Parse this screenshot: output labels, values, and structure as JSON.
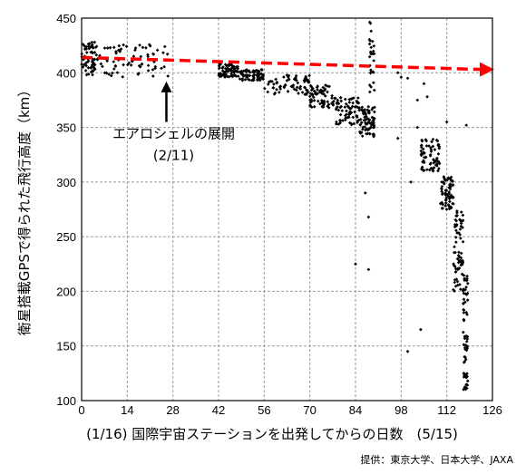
{
  "chart_data": {
    "type": "scatter",
    "title": "",
    "ylabel": "衛星搭載GPSで得られた飛行高度（km）",
    "xlabel": "(1/16) 国際宇宙ステーションを出発してからの日数　(5/15)",
    "xlim": [
      0,
      126
    ],
    "ylim": [
      100,
      450
    ],
    "xticks": [
      0,
      14,
      28,
      42,
      56,
      70,
      84,
      98,
      112,
      126
    ],
    "yticks": [
      100,
      150,
      200,
      250,
      300,
      350,
      400,
      450
    ],
    "grid": true,
    "annotation": {
      "text": "エアロシェルの展開",
      "date": "(2/11)",
      "x": 26,
      "y_from": 355,
      "y_to": 392
    },
    "trend_line": {
      "x": [
        0,
        126
      ],
      "y": [
        414,
        403
      ],
      "color": "#ff0000",
      "style": "dashed"
    },
    "series_color": "#000000",
    "clusters": [
      {
        "x": [
          0,
          5
        ],
        "y_min": 398,
        "y_max": 428
      },
      {
        "x": [
          5,
          27
        ],
        "y_min": 396,
        "y_max": 426
      },
      {
        "x": [
          42,
          48
        ],
        "y_min": 396,
        "y_max": 408
      },
      {
        "x": [
          48,
          56
        ],
        "y_min": 393,
        "y_max": 403
      },
      {
        "x": [
          56,
          70
        ],
        "y_min": 380,
        "y_max": 398
      },
      {
        "x": [
          70,
          78
        ],
        "y_min": 368,
        "y_max": 390
      },
      {
        "x": [
          78,
          85
        ],
        "y_min": 352,
        "y_max": 378
      },
      {
        "x": [
          85,
          90
        ],
        "y_min": 342,
        "y_max": 370
      },
      {
        "x": [
          104,
          110
        ],
        "y_min": 310,
        "y_max": 340
      },
      {
        "x": [
          110,
          114
        ],
        "y_min": 275,
        "y_max": 305
      },
      {
        "x": [
          114,
          117
        ],
        "y_min": 200,
        "y_max": 280
      },
      {
        "x": [
          117,
          118.5
        ],
        "y_min": 110,
        "y_max": 215
      }
    ],
    "outliers": [
      [
        97,
        400
      ],
      [
        98,
        396
      ],
      [
        100,
        395
      ],
      [
        105,
        390
      ],
      [
        106,
        378
      ],
      [
        103,
        375
      ],
      [
        112,
        355
      ],
      [
        118,
        352
      ],
      [
        101,
        300
      ],
      [
        84,
        225
      ],
      [
        88,
        220
      ],
      [
        87,
        290
      ],
      [
        88,
        268
      ],
      [
        104,
        165
      ],
      [
        100,
        145
      ],
      [
        97,
        340
      ],
      [
        103,
        350
      ],
      [
        107,
        325
      ]
    ],
    "vertical_streaks": [
      {
        "x": 88.5,
        "y_min": 380,
        "y_max": 450
      },
      {
        "x": 89.5,
        "y_min": 340,
        "y_max": 430
      }
    ]
  },
  "credit": "提供：東京大学、日本大学、JAXA"
}
